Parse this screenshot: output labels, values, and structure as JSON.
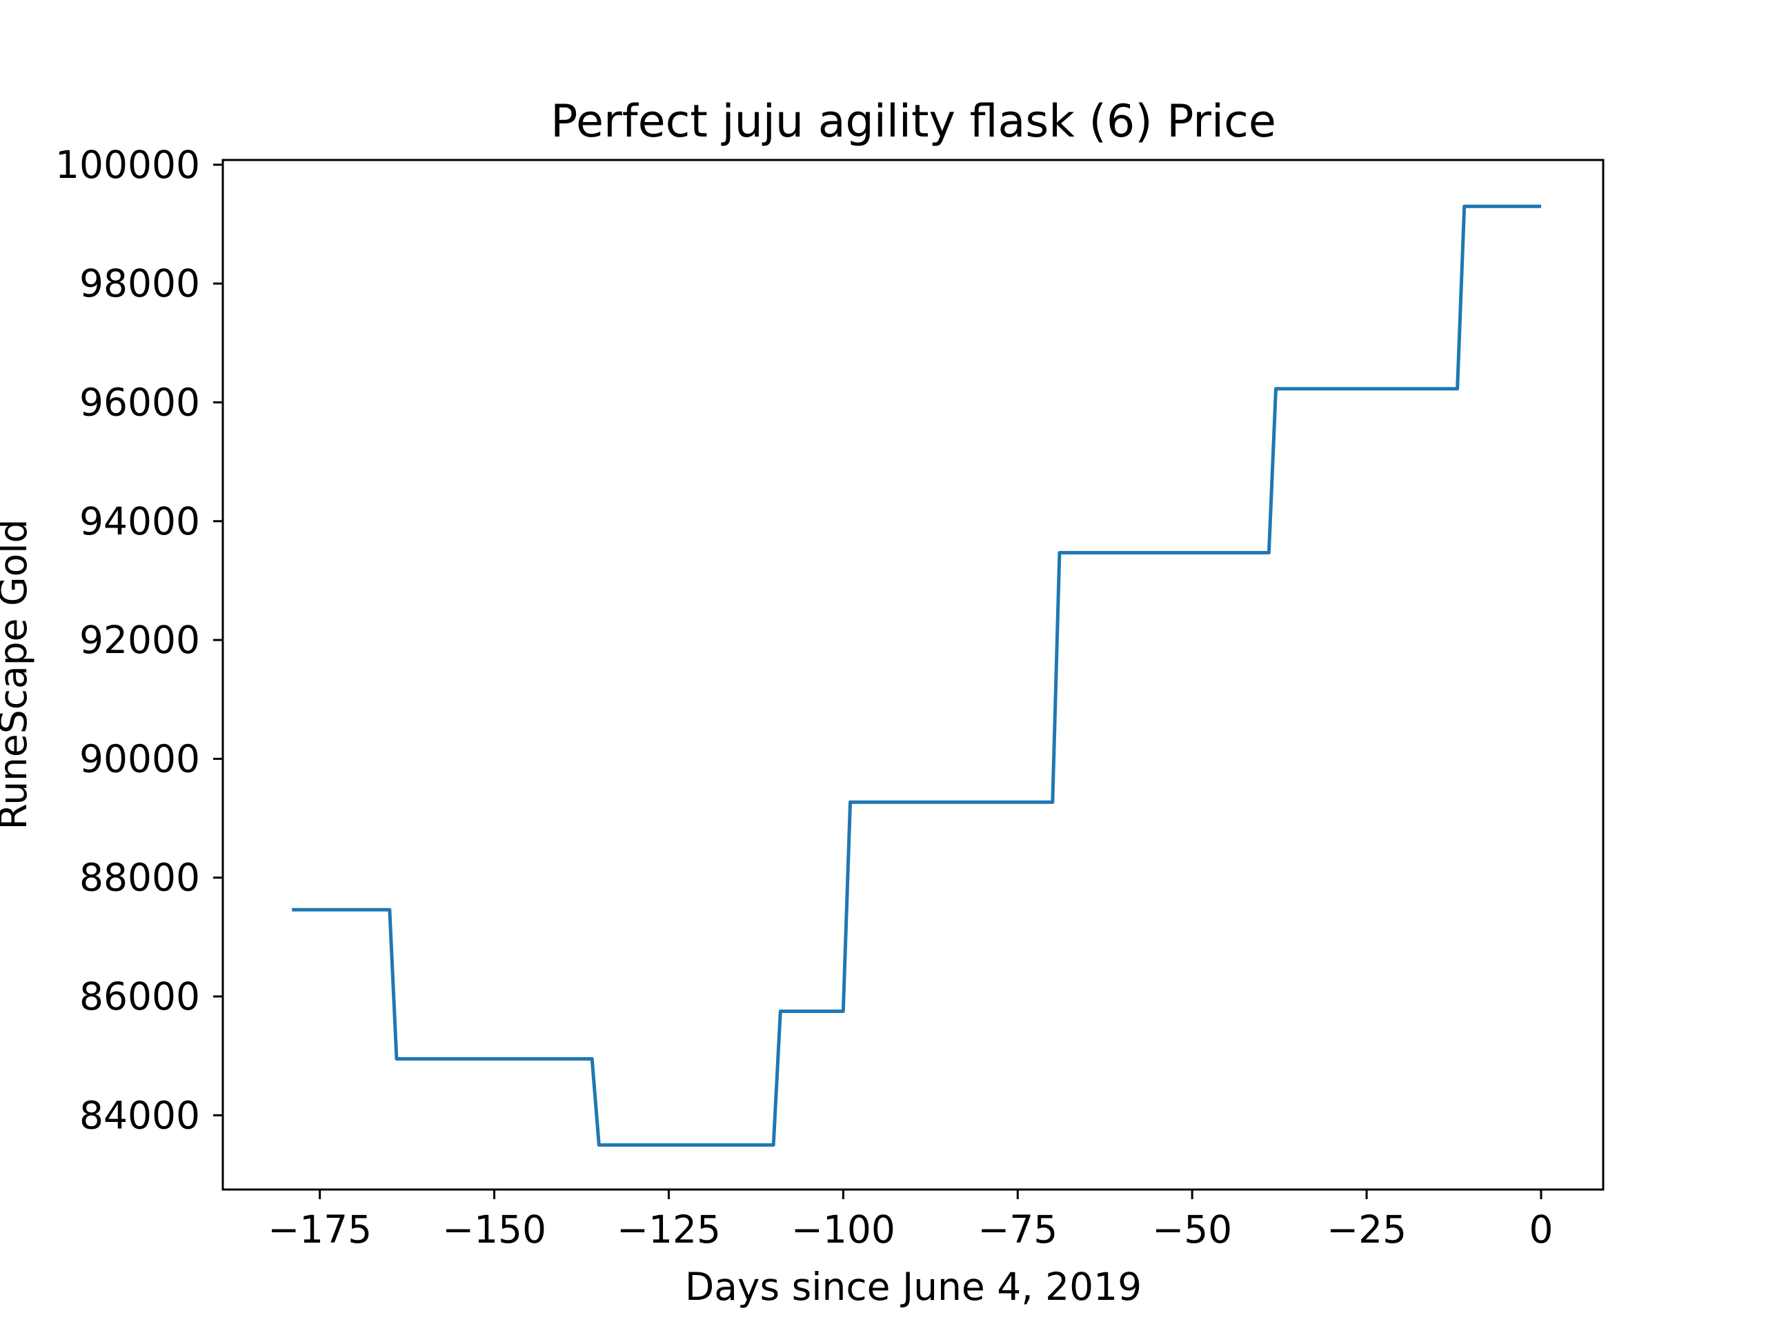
{
  "chart_data": {
    "type": "line",
    "title": "Perfect juju agility flask (6) Price",
    "xlabel": "Days since June 4, 2019",
    "ylabel": "RuneScape Gold",
    "xlim": [
      -188.9,
      8.9
    ],
    "ylim": [
      82750,
      100080
    ],
    "xticks": [
      -175,
      -150,
      -125,
      -100,
      -75,
      -50,
      -25,
      0
    ],
    "xtick_labels": [
      "−175",
      "−150",
      "−125",
      "−100",
      "−75",
      "−50",
      "−25",
      "0"
    ],
    "yticks": [
      84000,
      86000,
      88000,
      90000,
      92000,
      94000,
      96000,
      98000,
      100000
    ],
    "ytick_labels": [
      "84000",
      "86000",
      "88000",
      "90000",
      "92000",
      "94000",
      "96000",
      "98000",
      "100000"
    ],
    "grid": false,
    "series": [
      {
        "color": "#1f77b4",
        "points": [
          [
            -179,
            87460
          ],
          [
            -165,
            87460
          ],
          [
            -164,
            84950
          ],
          [
            -136,
            84950
          ],
          [
            -135,
            83500
          ],
          [
            -110,
            83500
          ],
          [
            -109,
            85750
          ],
          [
            -100,
            85750
          ],
          [
            -99,
            89270
          ],
          [
            -70,
            89270
          ],
          [
            -69,
            93470
          ],
          [
            -39,
            93470
          ],
          [
            -38,
            96230
          ],
          [
            -12,
            96230
          ],
          [
            -11,
            99300
          ],
          [
            0,
            99300
          ]
        ]
      }
    ]
  }
}
